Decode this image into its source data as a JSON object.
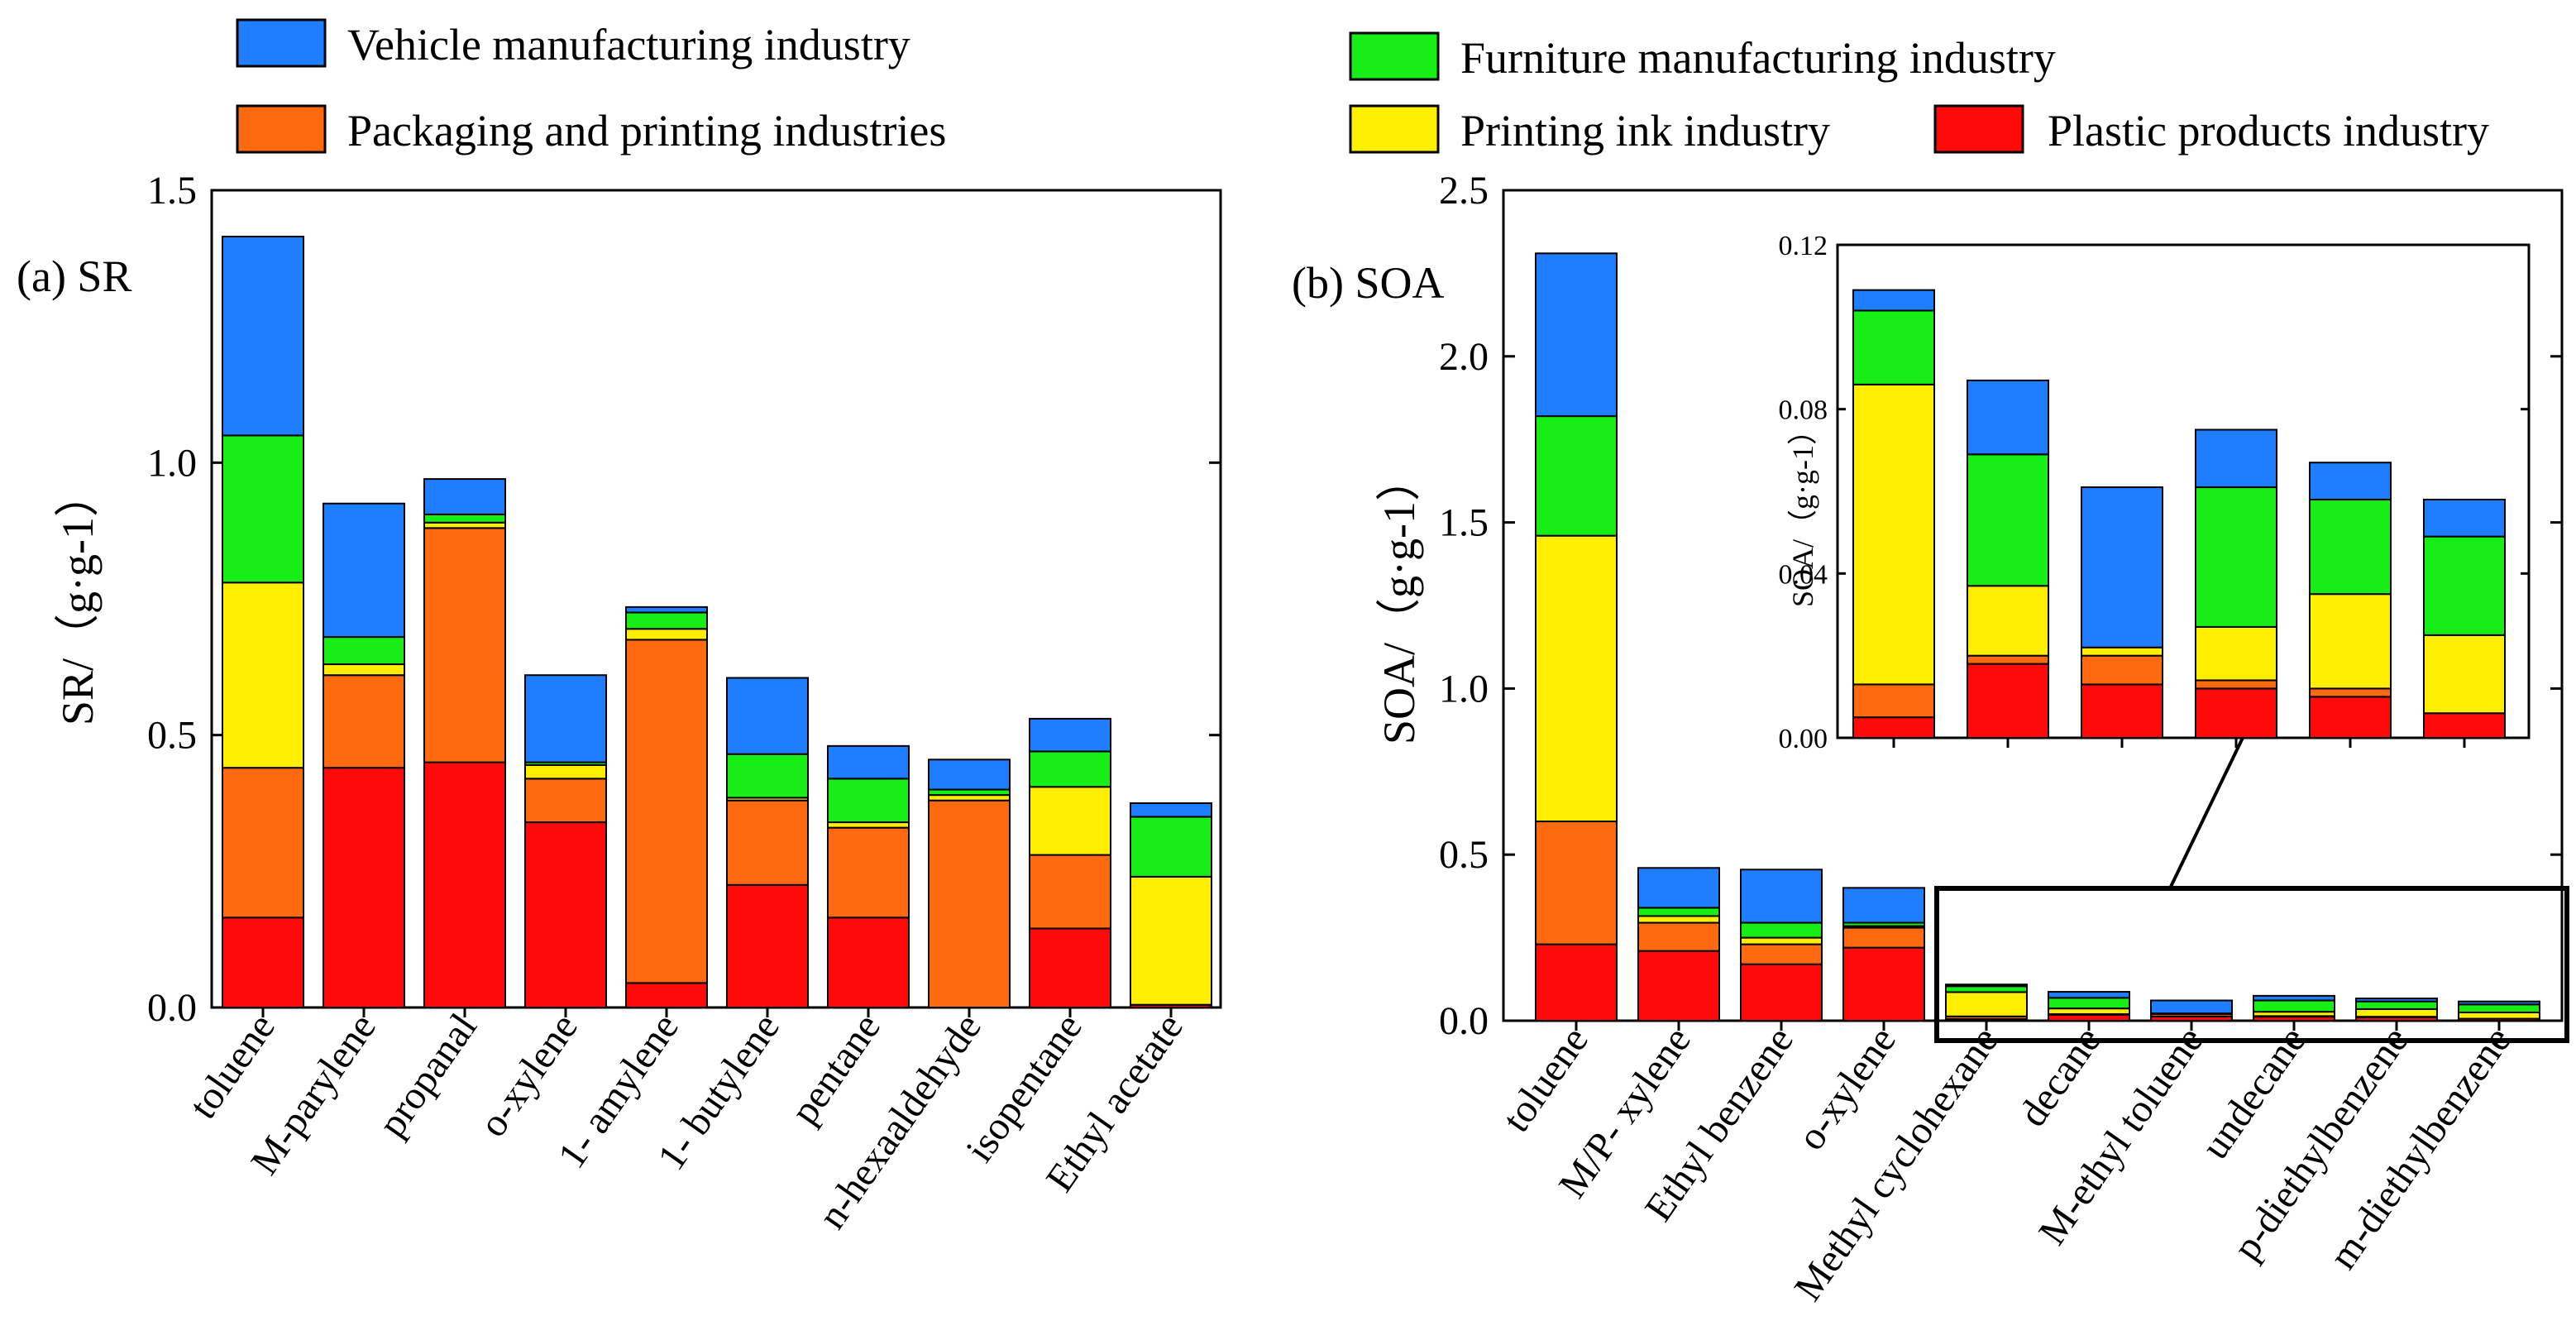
{
  "legend": [
    {
      "key": "vehicle",
      "label": "Vehicle manufacturing industry",
      "color": "#1E7EFF"
    },
    {
      "key": "packaging",
      "label": "Packaging and printing industries",
      "color": "#FF6A10"
    },
    {
      "key": "furniture",
      "label": "Furniture manufacturing industry",
      "color": "#16EE16"
    },
    {
      "key": "ink",
      "label": "Printing ink industry",
      "color": "#FFEE00"
    },
    {
      "key": "plastic",
      "label": "Plastic products industry",
      "color": "#FF0A0A"
    }
  ],
  "chart_data": [
    {
      "id": "sr",
      "type": "bar",
      "stacked": true,
      "title": "(a) SR",
      "xlabel": "",
      "ylabel": "SR/（g·g-1）",
      "ylim": [
        0,
        1.5
      ],
      "yticks": [
        "0.0",
        "0.5",
        "1.0",
        "1.5"
      ],
      "categories": [
        "toluene",
        "M-parylene",
        "propanal",
        "o-xylene",
        "1- amylene",
        "1- butylene",
        "pentane",
        "n-hexaaldehyde",
        "isopentane",
        "Ethyl acetate"
      ],
      "series": [
        {
          "key": "plastic",
          "name": "Plastic products industry",
          "values": [
            0.165,
            0.44,
            0.45,
            0.34,
            0.045,
            0.225,
            0.165,
            0.0,
            0.145,
            0.005
          ]
        },
        {
          "key": "packaging",
          "name": "Packaging and printing industries",
          "values": [
            0.275,
            0.17,
            0.43,
            0.08,
            0.63,
            0.155,
            0.165,
            0.38,
            0.135,
            0.0
          ]
        },
        {
          "key": "ink",
          "name": "Printing ink industry",
          "values": [
            0.34,
            0.02,
            0.01,
            0.025,
            0.02,
            0.005,
            0.01,
            0.01,
            0.125,
            0.235
          ]
        },
        {
          "key": "furniture",
          "name": "Furniture manufacturing industry",
          "values": [
            0.27,
            0.05,
            0.015,
            0.005,
            0.03,
            0.08,
            0.08,
            0.01,
            0.065,
            0.11
          ]
        },
        {
          "key": "vehicle",
          "name": "Vehicle manufacturing industry",
          "values": [
            0.365,
            0.245,
            0.065,
            0.16,
            0.01,
            0.14,
            0.06,
            0.055,
            0.06,
            0.025
          ]
        }
      ]
    },
    {
      "id": "soa",
      "type": "bar",
      "stacked": true,
      "title": "(b) SOA",
      "xlabel": "",
      "ylabel": "SOA/（g·g-1）",
      "ylim": [
        0,
        2.5
      ],
      "yticks": [
        "0.0",
        "0.5",
        "1.0",
        "1.5",
        "2.0",
        "2.5"
      ],
      "categories": [
        "toluene",
        "M/P- xylene",
        "Ethyl benzene",
        "o-xylene",
        "Methyl cyclohexane",
        "decane",
        "M-ethyl toluene",
        "undecane",
        "p-diethylbenzene",
        "m-diethylbenzene"
      ],
      "series": [
        {
          "key": "plastic",
          "name": "Plastic products industry",
          "values": [
            0.23,
            0.21,
            0.17,
            0.22,
            0.005,
            0.018,
            0.013,
            0.012,
            0.01,
            0.006
          ]
        },
        {
          "key": "packaging",
          "name": "Packaging and printing industries",
          "values": [
            0.37,
            0.085,
            0.06,
            0.06,
            0.008,
            0.002,
            0.007,
            0.002,
            0.002,
            0.0
          ]
        },
        {
          "key": "ink",
          "name": "Printing ink industry",
          "values": [
            0.86,
            0.02,
            0.02,
            0.005,
            0.073,
            0.017,
            0.002,
            0.013,
            0.023,
            0.019
          ]
        },
        {
          "key": "furniture",
          "name": "Furniture manufacturing industry",
          "values": [
            0.36,
            0.025,
            0.045,
            0.01,
            0.018,
            0.032,
            0.0,
            0.034,
            0.023,
            0.024
          ]
        },
        {
          "key": "vehicle",
          "name": "Vehicle manufacturing industry",
          "values": [
            0.49,
            0.12,
            0.16,
            0.105,
            0.005,
            0.018,
            0.039,
            0.014,
            0.009,
            0.009
          ]
        }
      ]
    },
    {
      "id": "soa-inset",
      "type": "bar",
      "stacked": true,
      "title": "",
      "xlabel": "",
      "ylabel": "SOA/（g·g-1）",
      "ylim": [
        0,
        0.12
      ],
      "yticks": [
        "0.00",
        "0.04",
        "0.08",
        "0.12"
      ],
      "categories": [
        "Methyl cyclohexane",
        "decane",
        "M-ethyl toluene",
        "undecane",
        "p-diethylbenzene",
        "m-diethylbenzene"
      ],
      "series": [
        {
          "key": "plastic",
          "name": "Plastic products industry",
          "values": [
            0.005,
            0.018,
            0.013,
            0.012,
            0.01,
            0.006
          ]
        },
        {
          "key": "packaging",
          "name": "Packaging and printing industries",
          "values": [
            0.008,
            0.002,
            0.007,
            0.002,
            0.002,
            0.0
          ]
        },
        {
          "key": "ink",
          "name": "Printing ink industry",
          "values": [
            0.073,
            0.017,
            0.002,
            0.013,
            0.023,
            0.019
          ]
        },
        {
          "key": "furniture",
          "name": "Furniture manufacturing industry",
          "values": [
            0.018,
            0.032,
            0.0,
            0.034,
            0.023,
            0.024
          ]
        },
        {
          "key": "vehicle",
          "name": "Vehicle manufacturing industry",
          "values": [
            0.005,
            0.018,
            0.039,
            0.014,
            0.009,
            0.009
          ]
        }
      ]
    }
  ]
}
